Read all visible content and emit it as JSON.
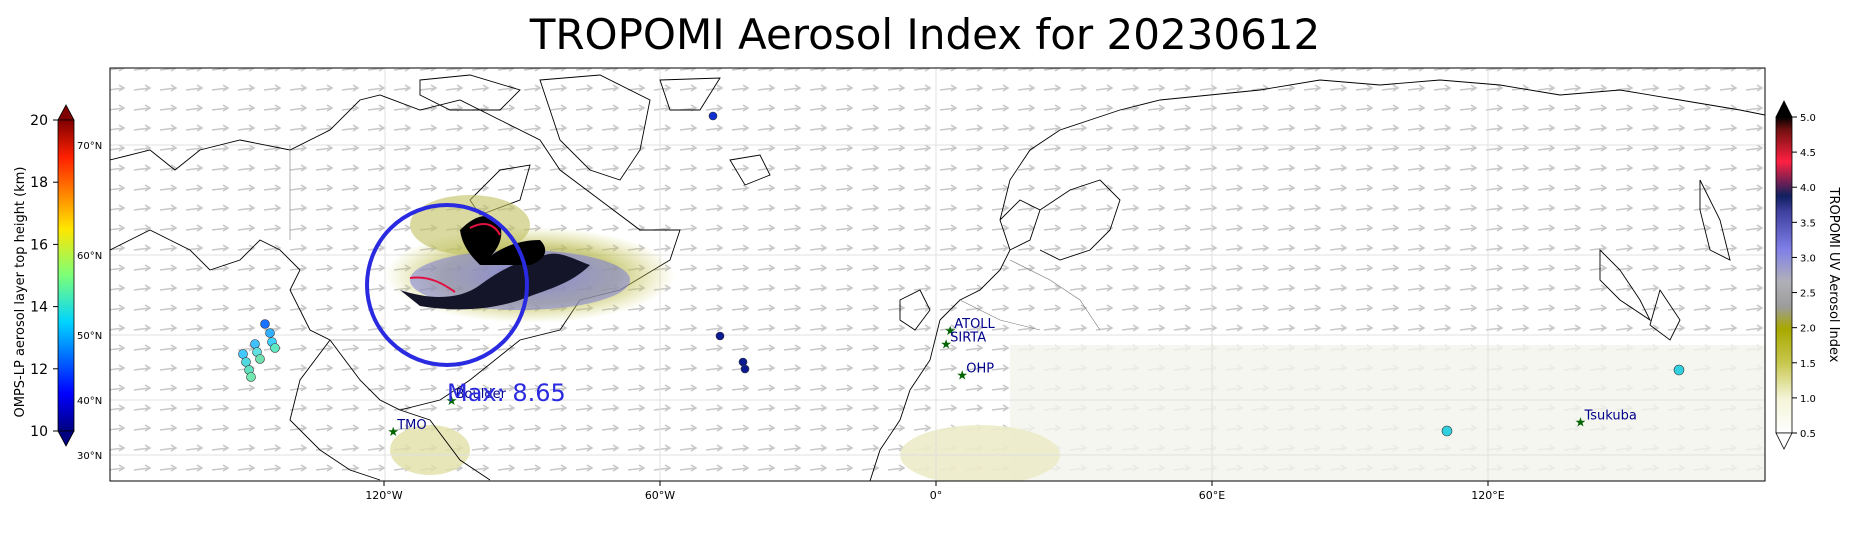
{
  "title": "TROPOMI Aerosol Index for 20230612",
  "map": {
    "xticks": [
      {
        "lon": -120,
        "label": "120°W"
      },
      {
        "lon": -60,
        "label": "60°W"
      },
      {
        "lon": 0,
        "label": "0°"
      },
      {
        "lon": 60,
        "label": "60°E"
      },
      {
        "lon": 120,
        "label": "120°E"
      }
    ],
    "lat_labels": [
      "70°N",
      "60°N",
      "50°N",
      "40°N",
      "30°N"
    ],
    "max_label": "Max: 8.65",
    "stations": [
      {
        "name": "TMO",
        "lon": -118,
        "lat": 34.4
      },
      {
        "name": "Boulder",
        "lon": -105.3,
        "lat": 40.0
      },
      {
        "name": "ATOLL",
        "lon": 3.1,
        "lat": 50.6
      },
      {
        "name": "SIRTA",
        "lon": 2.2,
        "lat": 48.7
      },
      {
        "name": "OHP",
        "lon": 5.7,
        "lat": 43.9
      },
      {
        "name": "Tsukuba",
        "lon": 140.1,
        "lat": 36.1
      }
    ],
    "colors": {
      "station_text": "#00008b",
      "station_marker": "#006400",
      "max_text": "#2a2ae0",
      "circle": "#2a2ae0"
    }
  },
  "left_colorbar": {
    "label": "OMPS-LP aerosol layer top height (km)",
    "ticks": [
      "10",
      "12",
      "14",
      "16",
      "18",
      "20"
    ],
    "colormap": "jet"
  },
  "right_colorbar": {
    "label": "TROPOMI UV Aerosol Index",
    "ticks": [
      "0.5",
      "1.0",
      "1.5",
      "2.0",
      "2.5",
      "3.0",
      "3.5",
      "4.0",
      "4.5",
      "5.0"
    ],
    "colormap": "white-olive-grey-blue-navy-red-black"
  }
}
